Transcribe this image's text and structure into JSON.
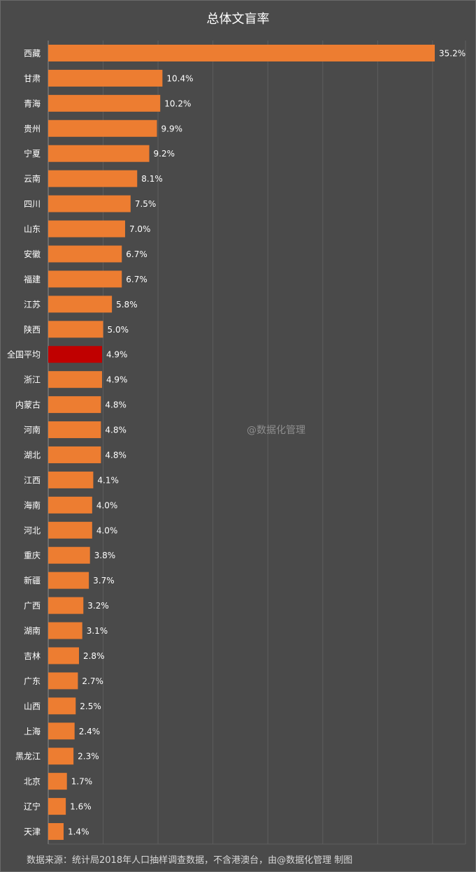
{
  "chart_data": {
    "type": "bar",
    "orientation": "horizontal",
    "title": "总体文盲率",
    "categories": [
      "西藏",
      "甘肃",
      "青海",
      "贵州",
      "宁夏",
      "云南",
      "四川",
      "山东",
      "安徽",
      "福建",
      "江苏",
      "陕西",
      "全国平均",
      "浙江",
      "内蒙古",
      "河南",
      "湖北",
      "江西",
      "海南",
      "河北",
      "重庆",
      "新疆",
      "广西",
      "湖南",
      "吉林",
      "广东",
      "山西",
      "上海",
      "黑龙江",
      "北京",
      "辽宁",
      "天津"
    ],
    "values": [
      35.2,
      10.4,
      10.2,
      9.9,
      9.2,
      8.1,
      7.5,
      7.0,
      6.7,
      6.7,
      5.8,
      5.0,
      4.9,
      4.9,
      4.8,
      4.8,
      4.8,
      4.1,
      4.0,
      4.0,
      3.8,
      3.7,
      3.2,
      3.1,
      2.8,
      2.7,
      2.5,
      2.4,
      2.3,
      1.7,
      1.6,
      1.4
    ],
    "value_labels": [
      "35.2%",
      "10.4%",
      "10.2%",
      "9.9%",
      "9.2%",
      "8.1%",
      "7.5%",
      "7.0%",
      "6.7%",
      "6.7%",
      "5.8%",
      "5.0%",
      "4.9%",
      "4.9%",
      "4.8%",
      "4.8%",
      "4.8%",
      "4.1%",
      "4.0%",
      "4.0%",
      "3.8%",
      "3.7%",
      "3.2%",
      "3.1%",
      "2.8%",
      "2.7%",
      "2.5%",
      "2.4%",
      "2.3%",
      "1.7%",
      "1.6%",
      "1.4%"
    ],
    "highlight_category": "全国平均",
    "xlim": [
      0,
      38
    ],
    "grid": true,
    "colors": {
      "bar": "#ed7d31",
      "highlight": "#c00000",
      "grid": "#5e5e5e",
      "background": "#4a4a4a"
    }
  },
  "watermark": "@数据化管理",
  "footer": "数据来源：统计局2018年人口抽样调查数据，不含港澳台，由@数据化管理  制图"
}
